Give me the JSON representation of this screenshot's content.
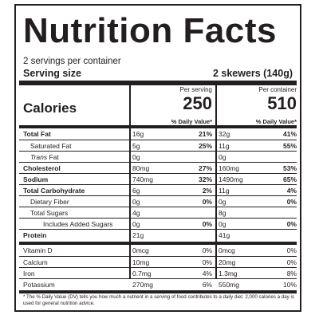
{
  "title": "Nutrition Facts",
  "servings_per_container": "2 servings per container",
  "serving_size_label": "Serving size",
  "serving_size_value": "2 skewers (140g)",
  "col_headers": [
    "Per serving",
    "Per container"
  ],
  "calories_label": "Calories",
  "calories_values": [
    "250",
    "510"
  ],
  "dv_header": "% Daily Value*",
  "nutrients": [
    {
      "name": "Total Fat",
      "bold": true,
      "indent": 0,
      "italic_prefix": "",
      "sv": "16g",
      "sdv": "21%",
      "cv": "32g",
      "cdv": "41%"
    },
    {
      "name": "Saturated Fat",
      "bold": false,
      "indent": 1,
      "italic_prefix": "",
      "sv": "5g",
      "sdv": "25%",
      "cv": "11g",
      "cdv": "55%"
    },
    {
      "name": " Fat",
      "bold": false,
      "indent": 1,
      "italic_prefix": "Trans",
      "sv": "0g",
      "sdv": "",
      "cv": "0g",
      "cdv": ""
    },
    {
      "name": "Cholesterol",
      "bold": true,
      "indent": 0,
      "italic_prefix": "",
      "sv": "80mg",
      "sdv": "27%",
      "cv": "160mg",
      "cdv": "53%"
    },
    {
      "name": "Sodium",
      "bold": true,
      "indent": 0,
      "italic_prefix": "",
      "sv": "740mg",
      "sdv": "32%",
      "cv": "1490mg",
      "cdv": "65%"
    },
    {
      "name": "Total Carbohydrate",
      "bold": true,
      "indent": 0,
      "italic_prefix": "",
      "sv": "6g",
      "sdv": "2%",
      "cv": "11g",
      "cdv": "4%"
    },
    {
      "name": "Dietary Fiber",
      "bold": false,
      "indent": 1,
      "italic_prefix": "",
      "sv": "0g",
      "sdv": "0%",
      "cv": "0g",
      "cdv": "0%"
    },
    {
      "name": "Total Sugars",
      "bold": false,
      "indent": 1,
      "italic_prefix": "",
      "sv": "4g",
      "sdv": "",
      "cv": "8g",
      "cdv": ""
    },
    {
      "name": "Includes Added Sugars",
      "bold": false,
      "indent": 2,
      "italic_prefix": "",
      "sv": "0g",
      "sdv": "0%",
      "cv": "0g",
      "cdv": "0%"
    },
    {
      "name": "Protein",
      "bold": true,
      "indent": 0,
      "italic_prefix": "",
      "sv": "21g",
      "sdv": "",
      "cv": "41g",
      "cdv": ""
    }
  ],
  "vitamins": [
    {
      "name": "Vitamin D",
      "sv": "0mcg",
      "sdv": "0%",
      "cv": "0mcg",
      "cdv": "0%"
    },
    {
      "name": "Calcium",
      "sv": "10mg",
      "sdv": "0%",
      "cv": "20mg",
      "cdv": "0%"
    },
    {
      "name": "Iron",
      "sv": "0.7mg",
      "sdv": "4%",
      "cv": "1.3mg",
      "cdv": "8%"
    },
    {
      "name": "Potassium",
      "sv": "270mg",
      "sdv": "6%",
      "cv": "550mg",
      "cdv": "10%"
    }
  ],
  "footnote": "* The % Daily Value (DV) tells you how much a nutrient in  a serving of food contributes to a daily diet. 2,000 calories a day is used for general nutrition advice."
}
